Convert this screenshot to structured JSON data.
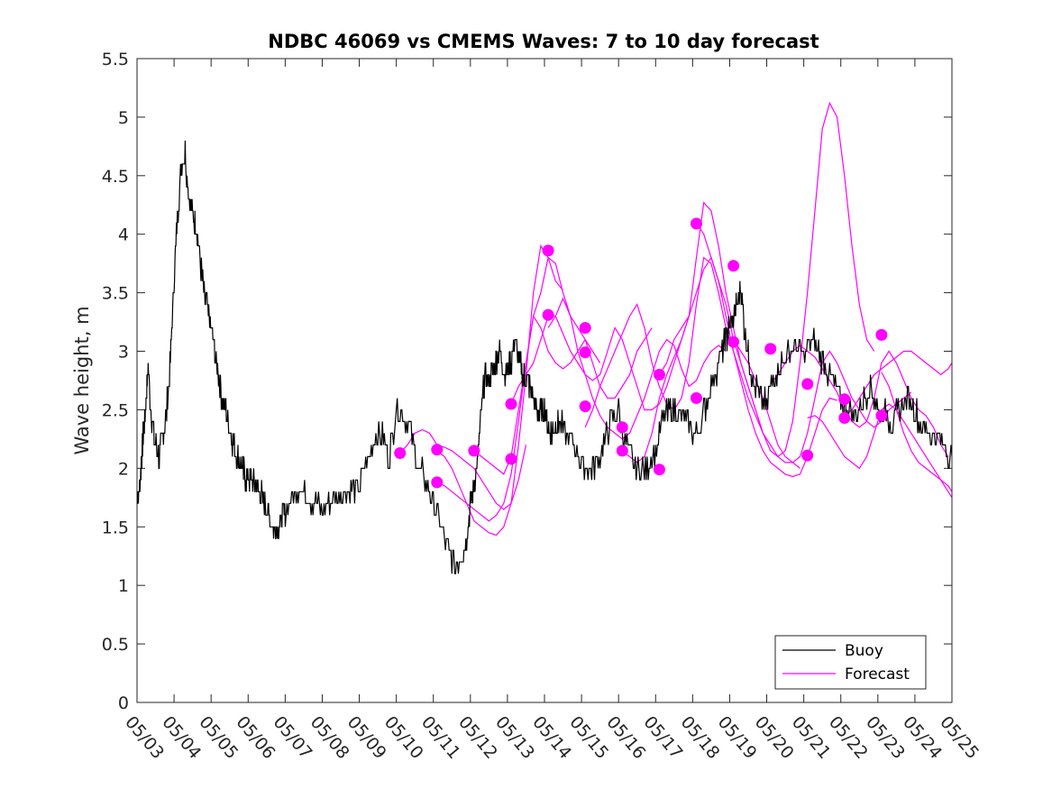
{
  "chart_data": {
    "type": "line",
    "title": "NDBC 46069 vs CMEMS Waves: 7 to 10 day forecast",
    "xlabel": "",
    "ylabel": "Wave height, m",
    "xlim": [
      0,
      22
    ],
    "ylim": [
      0,
      5.5
    ],
    "grid": false,
    "legend_position": "bottom-right",
    "x_tick_labels": [
      "05/03",
      "05/04",
      "05/05",
      "05/06",
      "05/07",
      "05/08",
      "05/09",
      "05/10",
      "05/11",
      "05/12",
      "05/13",
      "05/14",
      "05/15",
      "05/16",
      "05/17",
      "05/18",
      "05/19",
      "05/20",
      "05/21",
      "05/22",
      "05/23",
      "05/24",
      "05/25"
    ],
    "y_ticks": [
      0,
      0.5,
      1,
      1.5,
      2,
      2.5,
      3,
      3.5,
      4,
      4.5,
      5,
      5.5
    ],
    "y_tick_labels": [
      "0",
      "0.5",
      "1",
      "1.5",
      "2",
      "2.5",
      "3",
      "3.5",
      "4",
      "4.5",
      "5",
      "5.5"
    ],
    "colors": {
      "buoy": "#000000",
      "forecast": "#ff00ff"
    },
    "buoy": {
      "name": "Buoy",
      "x": [
        0,
        0.05,
        0.1,
        0.15,
        0.2,
        0.25,
        0.3,
        0.4,
        0.5,
        0.6,
        0.7,
        0.8,
        0.9,
        1.0,
        1.1,
        1.2,
        1.3,
        1.4,
        1.5,
        1.6,
        1.7,
        1.8,
        1.9,
        2.0,
        2.1,
        2.2,
        2.3,
        2.4,
        2.5,
        2.6,
        2.7,
        2.8,
        2.9,
        3.0,
        3.1,
        3.2,
        3.3,
        3.4,
        3.5,
        3.6,
        3.7,
        3.8,
        3.9,
        4.0,
        4.2,
        4.4,
        4.6,
        4.8,
        5.0,
        5.2,
        5.4,
        5.6,
        5.8,
        6.0,
        6.2,
        6.4,
        6.6,
        6.8,
        7.0,
        7.2,
        7.4,
        7.6,
        7.8,
        8.0,
        8.2,
        8.4,
        8.6,
        8.8,
        8.9,
        9.0,
        9.1,
        9.2,
        9.3,
        9.4,
        9.5,
        9.6,
        9.7,
        9.8,
        9.9,
        10.0,
        10.1,
        10.2,
        10.3,
        10.4,
        10.5,
        10.6,
        10.7,
        10.8,
        10.9,
        11.0,
        11.1,
        11.2,
        11.3,
        11.4,
        11.6,
        11.8,
        12.0,
        12.2,
        12.4,
        12.6,
        12.8,
        13.0,
        13.2,
        13.4,
        13.6,
        13.8,
        14.0,
        14.2,
        14.4,
        14.6,
        14.8,
        15.0,
        15.2,
        15.4,
        15.6,
        15.8,
        15.9,
        16.0,
        16.1,
        16.2,
        16.3,
        16.4,
        16.5,
        16.6,
        16.8,
        17.0,
        17.2,
        17.4,
        17.6,
        17.8,
        18.0,
        18.2,
        18.4,
        18.6,
        18.8,
        19.0,
        19.2,
        19.4,
        19.6,
        19.8,
        20.0,
        20.2,
        20.4,
        20.6,
        20.8,
        21.0,
        21.2,
        21.4,
        21.6,
        21.8,
        22.0
      ],
      "y": [
        1.8,
        1.75,
        2.0,
        2.2,
        2.4,
        2.6,
        2.85,
        2.4,
        2.2,
        2.1,
        2.3,
        2.5,
        2.9,
        3.6,
        4.2,
        4.6,
        4.7,
        4.3,
        4.2,
        4.05,
        3.8,
        3.5,
        3.35,
        3.2,
        3.0,
        2.8,
        2.6,
        2.5,
        2.35,
        2.2,
        2.1,
        2.05,
        1.95,
        1.9,
        1.9,
        1.85,
        1.8,
        1.75,
        1.65,
        1.55,
        1.5,
        1.5,
        1.55,
        1.65,
        1.75,
        1.85,
        1.75,
        1.7,
        1.65,
        1.7,
        1.75,
        1.8,
        1.8,
        1.85,
        2.05,
        2.25,
        2.3,
        2.1,
        2.5,
        2.45,
        2.3,
        2.0,
        1.9,
        1.7,
        1.5,
        1.3,
        1.15,
        1.3,
        1.4,
        1.7,
        1.85,
        2.1,
        2.5,
        2.8,
        2.75,
        2.8,
        2.95,
        3.0,
        2.8,
        2.85,
        2.9,
        3.1,
        2.95,
        2.8,
        2.75,
        2.7,
        2.6,
        2.5,
        2.45,
        2.5,
        2.35,
        2.3,
        2.35,
        2.4,
        2.3,
        2.2,
        2.05,
        2.0,
        2.05,
        2.2,
        2.4,
        2.5,
        2.2,
        2.05,
        2.0,
        2.0,
        2.15,
        2.4,
        2.5,
        2.5,
        2.4,
        2.3,
        2.35,
        2.6,
        2.8,
        3.0,
        3.1,
        3.2,
        3.3,
        3.4,
        3.55,
        3.2,
        3.0,
        2.75,
        2.6,
        2.55,
        2.8,
        2.9,
        3.0,
        3.05,
        2.95,
        3.1,
        3.0,
        2.85,
        2.75,
        2.55,
        2.5,
        2.45,
        2.6,
        2.7,
        2.5,
        2.45,
        2.4,
        2.5,
        2.6,
        2.5,
        2.35,
        2.3,
        2.25,
        2.2,
        2.1
      ]
    },
    "forecast_series": [
      {
        "name": "Forecast",
        "x": [
          7.1,
          7.3,
          7.5,
          7.7,
          7.9,
          8.1,
          8.3,
          8.5,
          8.7,
          8.9,
          9.1,
          9.3,
          9.5,
          9.7,
          9.9,
          10.1,
          10.3,
          10.5
        ],
        "y": [
          2.13,
          2.2,
          2.3,
          2.33,
          2.3,
          2.2,
          2.18,
          2.15,
          2.1,
          2.05,
          2.0,
          1.9,
          1.8,
          1.7,
          1.65,
          1.7,
          1.9,
          2.2
        ]
      },
      {
        "name": "Forecast",
        "x": [
          8.1,
          8.3,
          8.5,
          8.7,
          8.9,
          9.1,
          9.3,
          9.5,
          9.7,
          9.9,
          10.1,
          10.3,
          10.5,
          10.7,
          10.9,
          11.1,
          11.3,
          11.5
        ],
        "y": [
          2.15,
          2.1,
          2.0,
          1.85,
          1.7,
          1.55,
          1.5,
          1.45,
          1.43,
          1.5,
          1.7,
          2.2,
          2.8,
          3.5,
          3.9,
          3.8,
          3.6,
          3.52
        ]
      },
      {
        "name": "Forecast",
        "x": [
          8.1,
          8.3,
          8.5,
          8.7,
          8.9,
          9.1,
          9.3,
          9.5,
          9.7,
          9.9,
          10.1,
          10.3,
          10.5,
          10.7,
          10.9,
          11.1,
          11.3,
          11.5,
          11.7,
          11.9,
          12.1,
          12.3,
          12.5
        ],
        "y": [
          1.88,
          1.85,
          1.8,
          1.75,
          1.7,
          1.65,
          1.6,
          1.55,
          1.6,
          1.7,
          1.95,
          2.4,
          2.9,
          3.3,
          3.2,
          3.0,
          2.9,
          2.85,
          2.9,
          3.0,
          3.1,
          3.0,
          2.9
        ]
      },
      {
        "name": "Forecast",
        "x": [
          9.1,
          9.3,
          9.5,
          9.7,
          9.9,
          10.1,
          10.3,
          10.5,
          10.7,
          10.9,
          11.1,
          11.3,
          11.5,
          11.7,
          11.9,
          12.1,
          12.3,
          12.5,
          12.7,
          12.9,
          13.1,
          13.3,
          13.5,
          13.7,
          13.9
        ],
        "y": [
          2.15,
          2.1,
          2.05,
          2.0,
          1.95,
          2.1,
          2.5,
          2.9,
          3.3,
          3.5,
          3.8,
          3.75,
          3.5,
          3.3,
          3.2,
          3.1,
          2.9,
          2.7,
          2.6,
          2.6,
          2.7,
          2.8,
          3.0,
          3.1,
          3.2
        ]
      },
      {
        "name": "Forecast",
        "x": [
          10.1,
          10.3,
          10.5,
          10.7,
          10.9,
          11.1,
          11.3,
          11.5,
          11.7,
          11.9,
          12.1,
          12.3,
          12.5,
          12.7,
          12.9,
          13.1,
          13.3,
          13.5,
          13.7,
          13.9,
          14.1,
          14.3,
          14.5,
          14.7,
          14.9
        ],
        "y": [
          2.55,
          2.7,
          2.8,
          2.9,
          3.1,
          3.3,
          3.3,
          3.15,
          3.0,
          2.9,
          2.8,
          2.75,
          2.8,
          3.0,
          3.2,
          3.1,
          2.9,
          2.7,
          2.5,
          2.5,
          2.55,
          2.7,
          2.9,
          3.1,
          3.3
        ]
      },
      {
        "name": "Forecast",
        "x": [
          11.1,
          11.3,
          11.5,
          11.7,
          11.9,
          12.1,
          12.3,
          12.5,
          12.7,
          12.9,
          13.1,
          13.3,
          13.5,
          13.7,
          13.9,
          14.1,
          14.3,
          14.5,
          14.7,
          14.9,
          15.1,
          15.3,
          15.5,
          15.7,
          15.9
        ],
        "y": [
          3.2,
          3.3,
          3.45,
          3.3,
          3.0,
          2.8,
          2.6,
          2.45,
          2.35,
          2.3,
          2.25,
          2.3,
          2.45,
          2.6,
          2.8,
          3.0,
          3.1,
          3.05,
          2.85,
          2.7,
          2.75,
          2.9,
          3.0,
          3.05,
          3.0
        ]
      },
      {
        "name": "Forecast",
        "x": [
          12.1,
          12.3,
          12.5,
          12.7,
          12.9,
          13.1,
          13.3,
          13.5,
          13.7,
          13.9,
          14.1,
          14.3,
          14.5,
          14.7,
          14.9,
          15.1,
          15.3,
          15.5,
          15.7,
          15.9,
          16.1,
          16.3,
          16.5,
          16.7,
          16.9
        ],
        "y": [
          2.35,
          2.5,
          2.7,
          2.85,
          3.0,
          3.15,
          3.3,
          3.4,
          3.2,
          2.9,
          2.7,
          2.55,
          2.5,
          2.6,
          2.9,
          3.4,
          3.8,
          3.75,
          3.5,
          3.2,
          3.0,
          2.8,
          2.6,
          2.45,
          2.3
        ]
      },
      {
        "name": "Forecast",
        "x": [
          13.1,
          13.3,
          13.5,
          13.7,
          13.9,
          14.1,
          14.3,
          14.5,
          14.7,
          14.9,
          15.1,
          15.3,
          15.5,
          15.7,
          15.9,
          16.1,
          16.3,
          16.5,
          16.7,
          16.9,
          17.1,
          17.3,
          17.5,
          17.7,
          17.9
        ],
        "y": [
          2.15,
          2.1,
          2.05,
          2.1,
          2.3,
          2.6,
          2.8,
          2.95,
          3.1,
          3.3,
          3.8,
          4.27,
          4.2,
          3.9,
          3.5,
          3.2,
          2.9,
          2.7,
          2.5,
          2.3,
          2.2,
          2.1,
          2.05,
          2.05,
          2.0
        ]
      },
      {
        "name": "Forecast",
        "x": [
          14.1,
          14.3,
          14.5,
          14.7,
          14.9,
          15.1,
          15.3,
          15.5,
          15.7,
          15.9,
          16.1,
          16.3,
          16.5,
          16.7,
          16.9,
          17.1,
          17.3,
          17.5,
          17.7,
          17.9,
          18.1,
          18.3,
          18.5,
          18.7,
          18.9
        ],
        "y": [
          2.8,
          2.9,
          3.1,
          3.2,
          3.3,
          3.5,
          3.7,
          3.8,
          3.6,
          3.3,
          3.0,
          2.75,
          2.5,
          2.3,
          2.15,
          2.05,
          2.0,
          1.95,
          1.93,
          1.95,
          2.1,
          2.3,
          2.5,
          2.6,
          2.58
        ]
      },
      {
        "name": "Forecast",
        "x": [
          15.1,
          15.3,
          15.5,
          15.7,
          15.9,
          16.1,
          16.3,
          16.5,
          16.7,
          16.9,
          17.1,
          17.3,
          17.5,
          17.7,
          17.9,
          18.1,
          18.3,
          18.5,
          18.7,
          18.9,
          19.1,
          19.3,
          19.5,
          19.7,
          19.9
        ],
        "y": [
          4.1,
          4.0,
          3.8,
          3.6,
          3.4,
          3.1,
          2.9,
          2.7,
          2.5,
          2.3,
          2.15,
          2.1,
          2.15,
          2.4,
          2.9,
          3.5,
          4.2,
          4.9,
          5.12,
          5.0,
          4.5,
          3.9,
          3.4,
          3.1,
          3.0
        ]
      },
      {
        "name": "Forecast",
        "x": [
          16.1,
          16.3,
          16.5,
          16.7,
          16.9,
          17.1,
          17.3,
          17.5,
          17.7,
          17.9,
          18.1,
          18.3,
          18.5,
          18.7,
          18.9,
          19.1,
          19.3,
          19.5,
          19.7,
          19.9,
          20.1,
          20.3,
          20.5,
          20.7,
          20.9
        ],
        "y": [
          3.1,
          3.0,
          2.9,
          2.75,
          2.6,
          2.4,
          2.2,
          2.1,
          2.05,
          2.1,
          2.3,
          2.6,
          2.9,
          3.0,
          2.9,
          2.75,
          2.6,
          2.5,
          2.4,
          2.35,
          2.4,
          2.5,
          2.55,
          2.6,
          2.65
        ]
      },
      {
        "name": "Forecast",
        "x": [
          17.1,
          17.3,
          17.5,
          17.7,
          17.9,
          18.1,
          18.3,
          18.5,
          18.7,
          18.9,
          19.1,
          19.3,
          19.5,
          19.7,
          19.9,
          20.1,
          20.3,
          20.5,
          20.7,
          20.9,
          21.1,
          21.3,
          21.5,
          21.7,
          21.9
        ],
        "y": [
          2.72,
          2.8,
          2.9,
          3.0,
          3.05,
          3.0,
          2.95,
          2.85,
          2.75,
          2.65,
          2.5,
          2.4,
          2.35,
          2.4,
          2.6,
          2.9,
          3.0,
          2.9,
          2.75,
          2.6,
          2.5,
          2.45,
          2.35,
          2.2,
          2.1
        ]
      },
      {
        "name": "Forecast",
        "x": [
          18.1,
          18.3,
          18.5,
          18.7,
          18.9,
          19.1,
          19.3,
          19.5,
          19.7,
          19.9,
          20.1,
          20.3,
          20.5,
          20.7,
          20.9,
          21.1,
          21.3,
          21.5,
          21.7,
          21.9,
          22.0
        ],
        "y": [
          2.43,
          2.45,
          2.4,
          2.3,
          2.2,
          2.1,
          2.05,
          2.0,
          2.1,
          2.3,
          2.5,
          2.55,
          2.5,
          2.4,
          2.3,
          2.2,
          2.1,
          2.0,
          1.9,
          1.8,
          1.75
        ]
      },
      {
        "name": "Forecast",
        "x": [
          19.1,
          19.3,
          19.5,
          19.7,
          19.9,
          20.1,
          20.3,
          20.5,
          20.7,
          20.9,
          21.1,
          21.3,
          21.5,
          21.7,
          21.9,
          22.0
        ],
        "y": [
          2.45,
          2.5,
          2.6,
          2.7,
          2.8,
          2.85,
          2.9,
          2.95,
          3.0,
          3.0,
          2.95,
          2.9,
          2.85,
          2.8,
          2.85,
          2.9
        ]
      },
      {
        "name": "Forecast",
        "x": [
          20.1,
          20.3,
          20.5,
          20.7,
          20.9,
          21.1,
          21.3,
          21.5,
          21.7,
          21.9,
          22.0
        ],
        "y": [
          2.82,
          2.7,
          2.5,
          2.3,
          2.15,
          2.05,
          2.0,
          1.95,
          1.9,
          1.85,
          1.8
        ]
      }
    ],
    "forecast_markers": {
      "x": [
        7.1,
        8.1,
        8.1,
        9.1,
        10.1,
        10.1,
        11.1,
        11.1,
        12.1,
        12.1,
        12.1,
        13.1,
        13.1,
        14.1,
        14.1,
        15.1,
        15.1,
        16.1,
        16.1,
        17.1,
        18.1,
        18.1,
        19.1,
        19.1,
        20.1,
        20.1
      ],
      "y": [
        2.13,
        2.16,
        1.88,
        2.15,
        2.55,
        2.08,
        3.86,
        3.31,
        3.2,
        2.99,
        2.53,
        2.35,
        2.15,
        1.99,
        2.8,
        2.6,
        4.09,
        3.73,
        3.08,
        3.02,
        2.72,
        2.11,
        2.59,
        2.43,
        3.14,
        2.45
      ]
    },
    "legend": [
      {
        "label": "Buoy",
        "series": "buoy"
      },
      {
        "label": "Forecast",
        "series": "forecast"
      }
    ]
  }
}
